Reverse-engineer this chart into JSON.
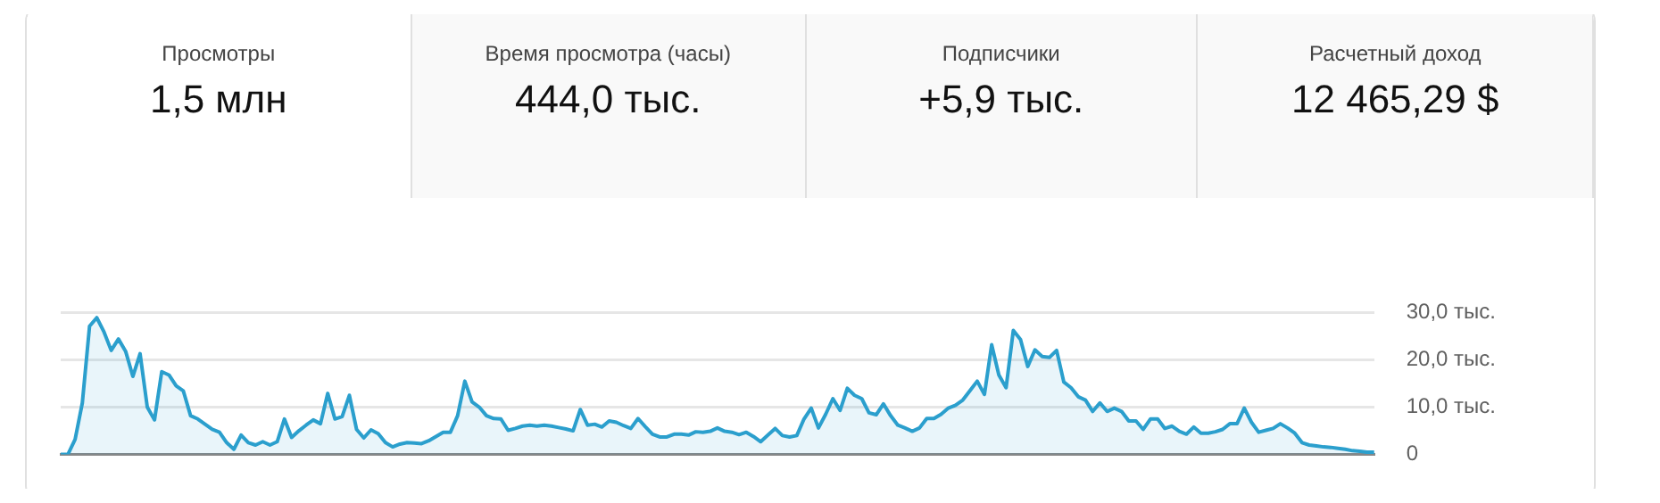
{
  "chart_data": [
    {
      "type": "other",
      "title": "Просмотры",
      "subtitle": "1,5 млн"
    },
    {
      "type": "other",
      "title": "Время просмотра (часы)",
      "subtitle": "444,0 тыс."
    },
    {
      "type": "other",
      "title": "Подписчики",
      "subtitle": "+5,9 тыс."
    },
    {
      "type": "other",
      "title": "Расчетный доход",
      "subtitle": "12 465,29 $"
    },
    {
      "type": "area",
      "color": "#2b9fcd",
      "grid": "y",
      "tick_labels": "y",
      "ylim": [
        0,
        30
      ],
      "yticks": [
        {
          "value": 0,
          "label": "0"
        },
        {
          "value": 10,
          "label": "10,0 тыс."
        },
        {
          "value": 20,
          "label": "20,0 тыс."
        },
        {
          "value": 30,
          "label": "30,0 тыс."
        }
      ],
      "categories": [
        null,
        null,
        null,
        null,
        null,
        null,
        null,
        null,
        null,
        null,
        null,
        null,
        null,
        null,
        null,
        null,
        null,
        null,
        null,
        null,
        null,
        null,
        null,
        null,
        null,
        null,
        null,
        null,
        null,
        null,
        null,
        null,
        null,
        null,
        null,
        null,
        null,
        null,
        null,
        null,
        null,
        null,
        null,
        null,
        null,
        null,
        null,
        null,
        null,
        null,
        null,
        null,
        null,
        null,
        null,
        null,
        null,
        null,
        null,
        null,
        null,
        null,
        null,
        null,
        null,
        null,
        null,
        null,
        null,
        null,
        null,
        null,
        null,
        null,
        null,
        null,
        null,
        null,
        null,
        null,
        null,
        null,
        null,
        null,
        null,
        null,
        null,
        null,
        null,
        null,
        null,
        null,
        null,
        null,
        null,
        null,
        null,
        null,
        null,
        null,
        null,
        null,
        null,
        null,
        null,
        null,
        null,
        null,
        null,
        null,
        null,
        null,
        null,
        null,
        null,
        null,
        null,
        null,
        null,
        null,
        null,
        null,
        null,
        null,
        null,
        null,
        null,
        null,
        null,
        null,
        null,
        null,
        null,
        null,
        null,
        null,
        null,
        null,
        null,
        null,
        null,
        null,
        null,
        null,
        null,
        null,
        null,
        null,
        null,
        null,
        null,
        null,
        null,
        null,
        null,
        null,
        null,
        null,
        null,
        null,
        null,
        null,
        null,
        null,
        null,
        null,
        null,
        null,
        null,
        null,
        null,
        null,
        null,
        null,
        null,
        null,
        null,
        null,
        null,
        null,
        null,
        null,
        null
      ],
      "values": [
        0,
        0,
        3.2,
        10.9,
        27.1,
        28.9,
        25.9,
        22.0,
        24.4,
        21.8,
        16.5,
        21.3,
        10.0,
        7.3,
        17.5,
        16.8,
        14.5,
        13.4,
        8.2,
        7.5,
        6.4,
        5.3,
        4.7,
        2.5,
        1.1,
        4.1,
        2.5,
        2.0,
        2.7,
        2.0,
        2.7,
        7.5,
        3.6,
        5.0,
        6.2,
        7.3,
        6.5,
        12.9,
        7.5,
        8.0,
        12.5,
        5.3,
        3.5,
        5.2,
        4.4,
        2.5,
        1.6,
        2.2,
        2.5,
        2.4,
        2.3,
        2.9,
        3.8,
        4.7,
        4.7,
        8.2,
        15.5,
        11.1,
        10.0,
        8.2,
        7.6,
        7.5,
        5.1,
        5.5,
        6.0,
        6.2,
        6.0,
        6.2,
        6.0,
        5.7,
        5.4,
        5.0,
        9.5,
        6.2,
        6.4,
        5.8,
        7.1,
        6.8,
        6.1,
        5.5,
        7.6,
        5.9,
        4.3,
        3.7,
        3.7,
        4.3,
        4.3,
        4.1,
        4.8,
        4.7,
        4.9,
        5.6,
        4.9,
        4.7,
        4.2,
        4.7,
        3.8,
        2.7,
        4.1,
        5.5,
        4.0,
        3.7,
        4.0,
        7.5,
        9.8,
        5.6,
        8.5,
        11.8,
        9.3,
        14.0,
        12.5,
        11.8,
        8.8,
        8.4,
        10.7,
        8.2,
        6.2,
        5.6,
        4.9,
        5.6,
        7.6,
        7.6,
        8.5,
        9.8,
        10.4,
        11.5,
        13.5,
        15.5,
        12.7,
        23.2,
        16.8,
        14.1,
        26.2,
        24.3,
        18.6,
        22.1,
        20.7,
        20.5,
        22.0,
        15.3,
        14.1,
        12.2,
        11.5,
        9.1,
        10.9,
        9.1,
        9.8,
        9.1,
        7.1,
        7.1,
        5.3,
        7.5,
        7.5,
        5.5,
        6.0,
        4.9,
        4.3,
        5.8,
        4.5,
        4.5,
        4.8,
        5.3,
        6.5,
        6.5,
        9.8,
        6.8,
        4.7,
        5.1,
        5.5,
        6.5,
        5.6,
        4.5,
        2.5,
        2.0,
        1.8,
        1.6,
        1.5,
        1.3,
        1.1,
        0.8,
        0.7,
        0.5,
        0.5
      ]
    }
  ]
}
